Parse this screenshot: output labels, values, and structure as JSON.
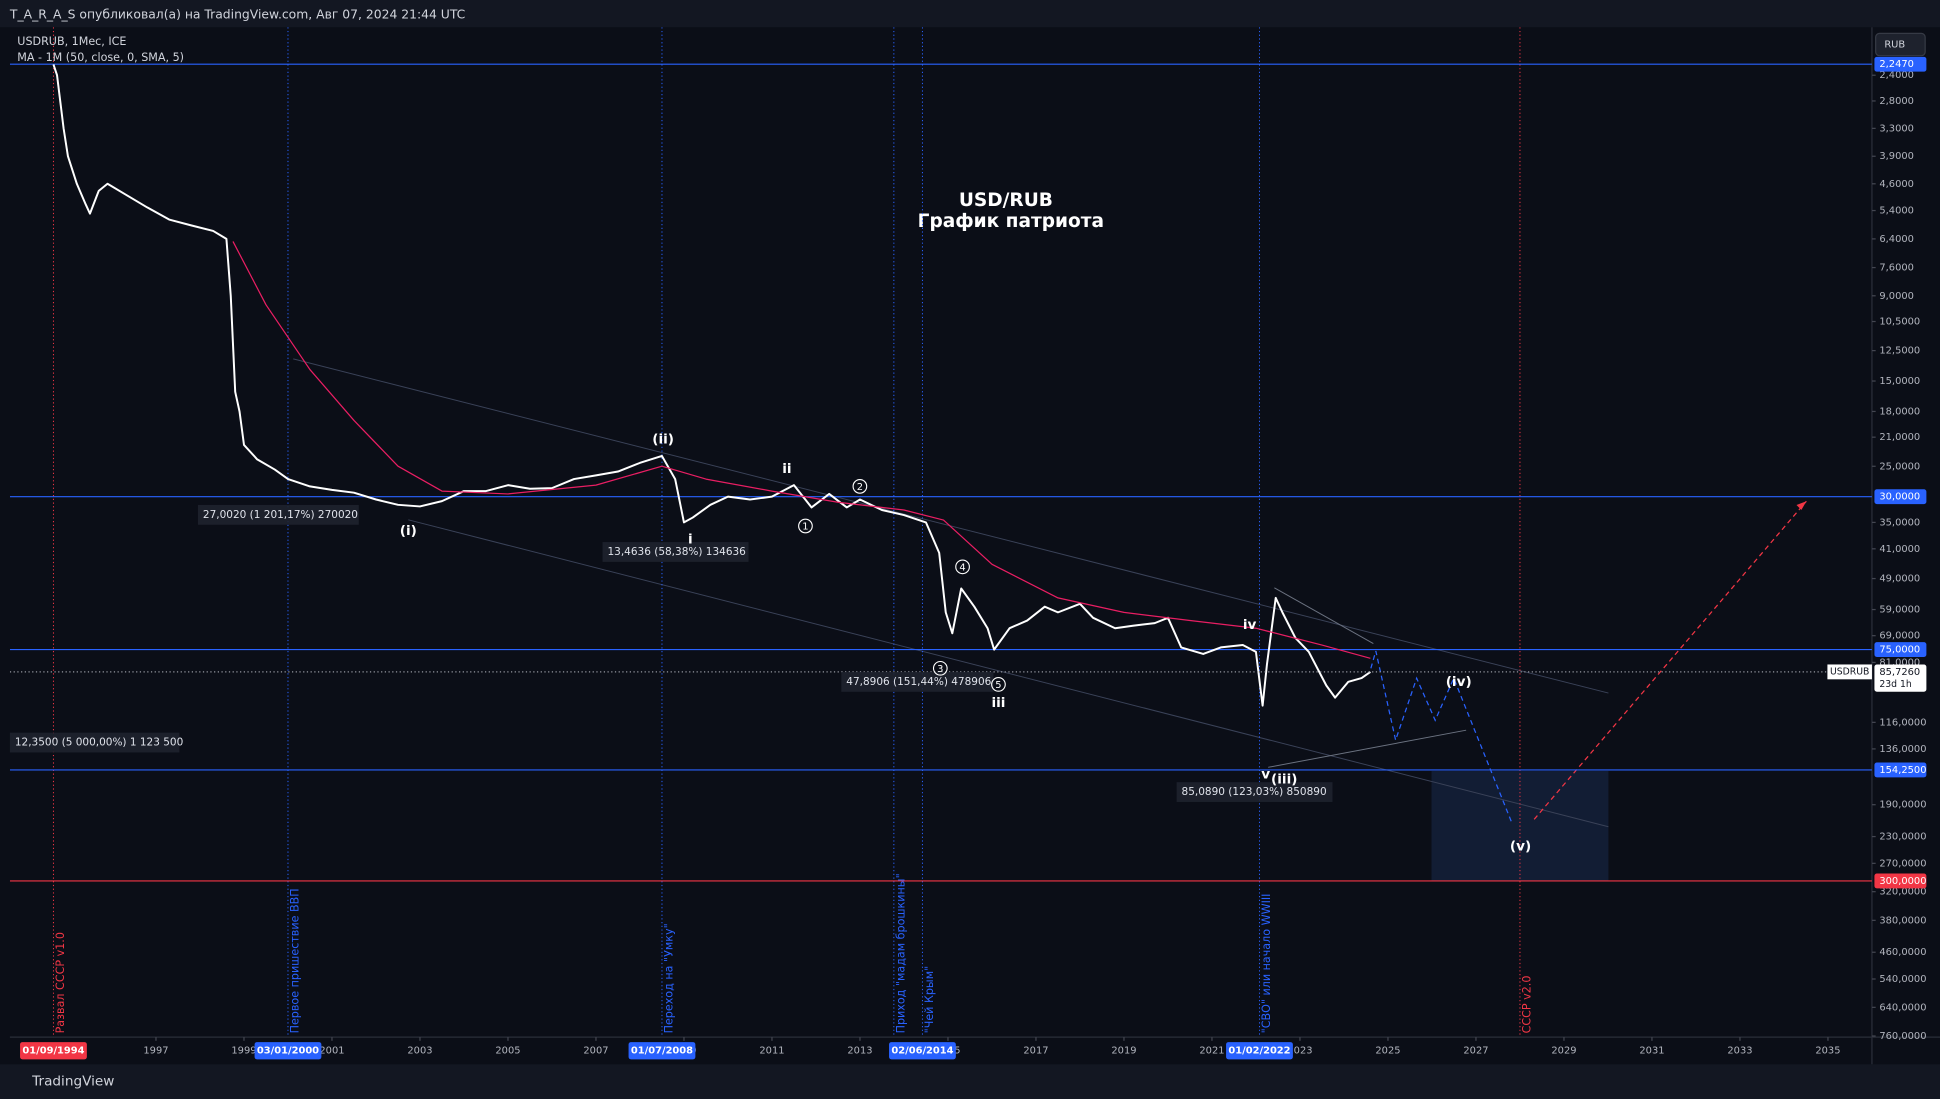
{
  "header": {
    "publisher": "T_A_R_A_S опубликовал(а) на TradingView.com, Авг 07, 2024 21:44 UTC",
    "currency": "RUB",
    "brand": "TradingView"
  },
  "chart_data": {
    "type": "line",
    "title": "USD/RUB",
    "subtitle": "График патриота",
    "y_log": true,
    "y_inverted": true,
    "grid": false,
    "xlim": [
      1993.68,
      2036.0
    ],
    "ylim": [
      1.8,
      765
    ],
    "xticks": [
      1997,
      1999,
      2001,
      2003,
      2005,
      2007,
      2009,
      2011,
      2013,
      2015,
      2017,
      2019,
      2021,
      2023,
      2025,
      2027,
      2029,
      2031,
      2033,
      2035
    ],
    "yticks": [
      {
        "value": 2.4,
        "label": "2,4000"
      },
      {
        "value": 2.8,
        "label": "2,8000"
      },
      {
        "value": 3.3,
        "label": "3,3000"
      },
      {
        "value": 3.9,
        "label": "3,9000"
      },
      {
        "value": 4.6,
        "label": "4,6000"
      },
      {
        "value": 5.4,
        "label": "5,4000"
      },
      {
        "value": 6.4,
        "label": "6,4000"
      },
      {
        "value": 7.6,
        "label": "7,6000"
      },
      {
        "value": 9,
        "label": "9,0000"
      },
      {
        "value": 10.5,
        "label": "10,5000"
      },
      {
        "value": 12.5,
        "label": "12,5000"
      },
      {
        "value": 15,
        "label": "15,0000"
      },
      {
        "value": 18,
        "label": "18,0000"
      },
      {
        "value": 21,
        "label": "21,0000"
      },
      {
        "value": 25,
        "label": "25,0000"
      },
      {
        "value": 35,
        "label": "35,0000"
      },
      {
        "value": 41,
        "label": "41,0000"
      },
      {
        "value": 49,
        "label": "49,0000"
      },
      {
        "value": 59,
        "label": "59,0000"
      },
      {
        "value": 69,
        "label": "69,0000"
      },
      {
        "value": 81,
        "label": "81,0000"
      },
      {
        "value": 116,
        "label": "116,0000"
      },
      {
        "value": 136,
        "label": "136,0000"
      },
      {
        "value": 190,
        "label": "190,0000"
      },
      {
        "value": 230,
        "label": "230,0000"
      },
      {
        "value": 270,
        "label": "270,0000"
      },
      {
        "value": 320,
        "label": "320,0000"
      },
      {
        "value": 380,
        "label": "380,0000"
      },
      {
        "value": 460,
        "label": "460,0000"
      },
      {
        "value": 540,
        "label": "540,0000"
      },
      {
        "value": 640,
        "label": "640,0000"
      },
      {
        "value": 760,
        "label": "760,0000"
      }
    ],
    "levels": [
      {
        "value": 2.247,
        "label": "2,2470",
        "color": "#2962ff"
      },
      {
        "value": 30,
        "label": "30,0000",
        "color": "#2962ff"
      },
      {
        "value": 75,
        "label": "75,0000",
        "color": "#2962ff"
      },
      {
        "value": 154.25,
        "label": "154,2500",
        "color": "#2962ff"
      },
      {
        "value": 300,
        "label": "300,0000",
        "color": "#f23645"
      }
    ],
    "last_price": {
      "name": "USDRUB",
      "value": 85.726,
      "label": "85,7260",
      "countdown": "23d 1h"
    },
    "events": [
      {
        "x": 1994.67,
        "date": "01/09/1994",
        "label": "Развал СССР v1.0",
        "color": "#f23645"
      },
      {
        "x": 2000.0,
        "date": "03/01/2000",
        "label": "Первое пришествие ВВП",
        "color": "#2962ff"
      },
      {
        "x": 2008.5,
        "date": "01/07/2008",
        "label": "Переход на \"Умку\"",
        "color": "#2962ff"
      },
      {
        "x": 2013.77,
        "label": "Приход \"мадам брошкины\"",
        "color": "#2962ff"
      },
      {
        "x": 2014.42,
        "date": "02/06/2014",
        "label": "\"Чей Крым\"",
        "color": "#2962ff"
      },
      {
        "x": 2022.08,
        "date": "01/02/2022",
        "label": "\"СВО\" или начало WWIII",
        "color": "#2962ff"
      },
      {
        "x": 2028.0,
        "label": "СССР v2.0",
        "color": "#f23645"
      }
    ],
    "waves": [
      "(i)",
      "(ii)",
      "(iii)",
      "(iv)",
      "(v)",
      "i",
      "ii",
      "iii",
      "iv",
      "v",
      "1",
      "2",
      "3",
      "4",
      "5"
    ],
    "measurements": [
      "12,3500 (5 000,00%) 1 123 500",
      "27,0020 (1 201,17%) 270020",
      "13,4636 (58,38%) 134636",
      "47,8906 (151,44%) 478906",
      "85,0890 (123,03%) 850890"
    ],
    "series": [
      {
        "name": "USDRUB, 1Мес, ICE",
        "color": "#ffffff",
        "x": [
          1994.67,
          1994.75,
          1994.9,
          1995.0,
          1995.2,
          1995.4,
          1995.5,
          1995.7,
          1995.9,
          1996.3,
          1996.8,
          1997.3,
          1997.8,
          1998.3,
          1998.6,
          1998.7,
          1998.8,
          1998.9,
          1999.0,
          1999.3,
          1999.7,
          2000.0,
          2000.5,
          2001.0,
          2001.5,
          2002.0,
          2002.5,
          2003.0,
          2003.5,
          2004.0,
          2004.5,
          2005.0,
          2005.5,
          2006.0,
          2006.5,
          2007.0,
          2007.5,
          2008.0,
          2008.5,
          2008.8,
          2009.0,
          2009.2,
          2009.6,
          2010.0,
          2010.5,
          2011.0,
          2011.5,
          2011.9,
          2012.3,
          2012.7,
          2013.0,
          2013.5,
          2014.0,
          2014.5,
          2014.8,
          2014.95,
          2015.1,
          2015.3,
          2015.6,
          2015.9,
          2016.05,
          2016.4,
          2016.8,
          2017.2,
          2017.5,
          2018.0,
          2018.3,
          2018.8,
          2019.2,
          2019.7,
          2020.0,
          2020.3,
          2020.8,
          2021.2,
          2021.7,
          2022.0,
          2022.15,
          2022.25,
          2022.45,
          2022.6,
          2022.9,
          2023.2,
          2023.6,
          2023.8,
          2024.1,
          2024.4,
          2024.6
        ],
        "values": [
          2.25,
          2.4,
          3.3,
          3.9,
          4.6,
          5.2,
          5.5,
          4.8,
          4.6,
          4.9,
          5.3,
          5.7,
          5.9,
          6.1,
          6.4,
          9,
          16,
          18,
          22,
          24,
          25.5,
          27,
          28.2,
          28.8,
          29.3,
          30.5,
          31.5,
          31.8,
          30.8,
          29,
          29,
          28,
          28.6,
          28.5,
          27,
          26.4,
          25.8,
          24.5,
          23.5,
          27,
          35,
          34,
          31.5,
          30,
          30.5,
          30,
          28,
          32,
          29.5,
          32,
          30.5,
          32.5,
          33.5,
          35,
          42,
          60,
          68,
          52,
          58,
          66,
          75,
          66,
          63,
          58,
          60,
          57,
          62,
          66,
          65,
          64,
          62,
          74,
          77,
          74,
          73,
          76,
          105,
          82,
          55,
          60,
          70,
          76,
          93,
          100,
          91,
          89,
          85.73
        ]
      },
      {
        "name": "MA - 1M (50, close, 0, SMA, 5)",
        "color": "#e91e63",
        "x": [
          1998.75,
          1999.5,
          2000.5,
          2001.5,
          2002.5,
          2003.5,
          2005,
          2007,
          2008.5,
          2009.5,
          2011,
          2012.5,
          2014,
          2014.9,
          2016,
          2017.5,
          2019,
          2020.5,
          2022,
          2023.5,
          2024.6
        ],
        "values": [
          6.5,
          9.5,
          14,
          19,
          25,
          29,
          29.5,
          28,
          25,
          27,
          29,
          31,
          32.5,
          34.5,
          45,
          55,
          60,
          63,
          66,
          73,
          79
        ]
      }
    ]
  }
}
